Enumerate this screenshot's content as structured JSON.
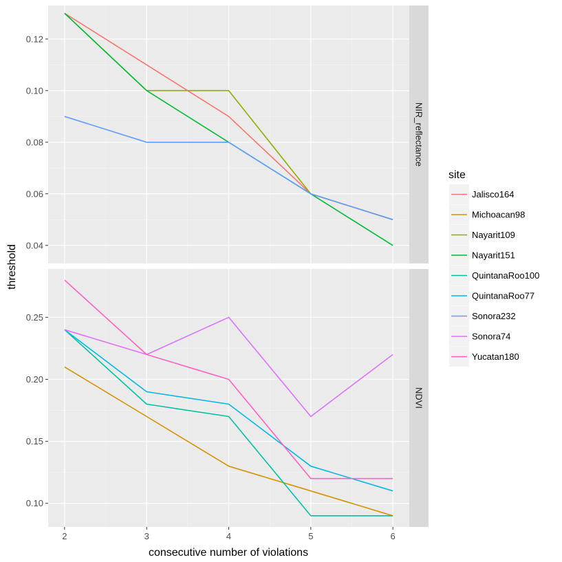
{
  "chart_data": {
    "type": "line",
    "xlabel": "consecutive number of violations",
    "ylabel": "threshold",
    "x": [
      2,
      3,
      4,
      5,
      6
    ],
    "x_ticks": [
      "2",
      "3",
      "4",
      "5",
      "6"
    ],
    "legend": {
      "title": "site",
      "position": "right",
      "entries": [
        {
          "name": "Jalisco164",
          "color": "#F8766D"
        },
        {
          "name": "Michoacan98",
          "color": "#D39200"
        },
        {
          "name": "Nayarit109",
          "color": "#93AA00"
        },
        {
          "name": "Nayarit151",
          "color": "#00BA38"
        },
        {
          "name": "QuintanaRoo100",
          "color": "#00C19F"
        },
        {
          "name": "QuintanaRoo77",
          "color": "#00B9E3"
        },
        {
          "name": "Sonora232",
          "color": "#619CFF"
        },
        {
          "name": "Sonora74",
          "color": "#DB72FB"
        },
        {
          "name": "Yucatan180",
          "color": "#FF61C3"
        }
      ]
    },
    "panels": [
      {
        "strip": "NIR_reflectance",
        "ylim": [
          0.033,
          0.133
        ],
        "y_ticks": [
          "0.04",
          "0.06",
          "0.08",
          "0.10",
          "0.12"
        ],
        "y_tick_values": [
          0.04,
          0.06,
          0.08,
          0.1,
          0.12
        ],
        "series": [
          {
            "name": "Jalisco164",
            "values": [
              0.13,
              0.11,
              0.09,
              0.06,
              0.05
            ]
          },
          {
            "name": "Nayarit109",
            "values": [
              0.13,
              0.1,
              0.1,
              0.06,
              0.05
            ]
          },
          {
            "name": "Nayarit151",
            "values": [
              0.13,
              0.1,
              0.08,
              0.06,
              0.04
            ]
          },
          {
            "name": "Sonora232",
            "values": [
              0.09,
              0.08,
              0.08,
              0.06,
              0.05
            ]
          }
        ]
      },
      {
        "strip": "NDVI",
        "ylim": [
          0.081,
          0.289
        ],
        "y_ticks": [
          "0.10",
          "0.15",
          "0.20",
          "0.25"
        ],
        "y_tick_values": [
          0.1,
          0.15,
          0.2,
          0.25
        ],
        "series": [
          {
            "name": "Michoacan98",
            "values": [
              0.21,
              0.17,
              0.13,
              0.11,
              0.09
            ]
          },
          {
            "name": "QuintanaRoo100",
            "values": [
              0.24,
              0.18,
              0.17,
              0.09,
              0.09
            ]
          },
          {
            "name": "QuintanaRoo77",
            "values": [
              0.24,
              0.19,
              0.18,
              0.13,
              0.11
            ]
          },
          {
            "name": "Sonora74",
            "values": [
              0.24,
              0.22,
              0.25,
              0.17,
              0.22
            ]
          },
          {
            "name": "Yucatan180",
            "values": [
              0.28,
              0.22,
              0.2,
              0.12,
              0.12
            ]
          }
        ]
      }
    ]
  }
}
